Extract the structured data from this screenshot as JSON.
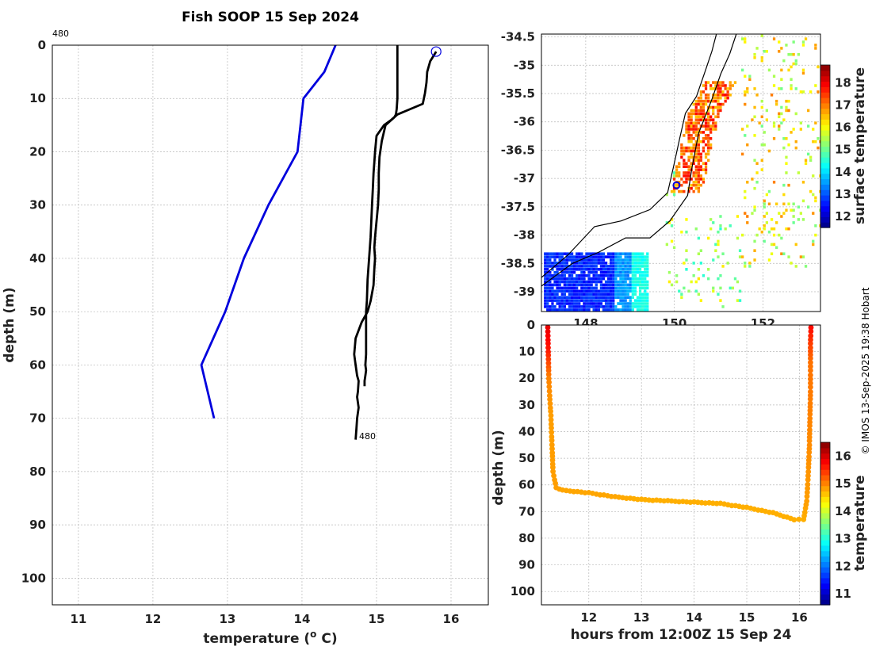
{
  "title": "Fish SOOP 15 Sep 2024",
  "credit": "© IMOS 13-Sep-2025 19:38 Hobart",
  "chart_data": [
    {
      "type": "line",
      "name": "temperature-profile",
      "xlabel": "temperature (",
      "xlabel_sup": "o",
      "xlabel_end": " C)",
      "ylabel": "depth (m)",
      "xlim": [
        10.65,
        16.5
      ],
      "ylim": [
        0,
        105
      ],
      "xticks": [
        11,
        12,
        13,
        14,
        15,
        16
      ],
      "yticks": [
        0,
        10,
        20,
        30,
        40,
        50,
        60,
        70,
        80,
        90,
        100
      ],
      "grid": true,
      "top_annotation": "480",
      "bottom_annotation": "480",
      "series": [
        {
          "name": "climatology",
          "color": "#0000dd",
          "x": [
            14.45,
            14.3,
            14.02,
            13.94,
            13.55,
            13.22,
            12.97,
            12.65,
            12.82
          ],
          "y": [
            0,
            5,
            10,
            20,
            30,
            40,
            50,
            60,
            70
          ]
        },
        {
          "name": "cast-down",
          "color": "#000000",
          "x": [
            15.28,
            15.28,
            15.28,
            15.27,
            15.26,
            15.24,
            15.2,
            15.1,
            15.0,
            14.98,
            14.97,
            14.96,
            14.95,
            14.94,
            14.93,
            14.92,
            14.9,
            14.88,
            14.87,
            14.86,
            14.86,
            14.86,
            14.86,
            14.85,
            14.86,
            14.85,
            14.84,
            14.84
          ],
          "y": [
            0,
            5,
            10,
            12,
            13,
            13.5,
            14,
            15,
            17,
            20,
            22,
            24,
            27,
            30,
            33,
            36,
            40,
            44,
            48,
            50,
            52,
            55,
            58,
            60,
            61,
            62,
            63,
            64
          ]
        },
        {
          "name": "cast-up",
          "color": "#000000",
          "x": [
            15.8,
            15.72,
            15.68,
            15.67,
            15.65,
            15.62,
            15.28,
            15.12,
            15.07,
            15.04,
            15.03,
            15.03,
            15.02,
            15.0,
            14.98,
            14.97,
            14.98,
            14.97,
            14.96,
            14.92,
            14.88,
            14.8,
            14.72,
            14.7,
            14.72,
            14.74,
            14.76,
            14.75,
            14.74,
            14.76,
            14.74,
            14.73,
            14.72
          ],
          "y": [
            1.2,
            3,
            5,
            7,
            9,
            11,
            13,
            15,
            18,
            21,
            24,
            27,
            30,
            33,
            36,
            38,
            40,
            42,
            45,
            48,
            50,
            52,
            55,
            58,
            60,
            62,
            63,
            65,
            66,
            68,
            70,
            72,
            74
          ]
        }
      ],
      "marker_circle": {
        "x": 15.8,
        "y": 1.2
      }
    },
    {
      "type": "heatmap",
      "name": "sst-map",
      "colorbar_label": "surface temperature",
      "colorbar_ticks": [
        12,
        13,
        14,
        15,
        16,
        17,
        18
      ],
      "colorbar_range": [
        11.5,
        18.8
      ],
      "xlim": [
        147.0,
        153.3
      ],
      "ylim": [
        -39.35,
        -34.45
      ],
      "xticks": [
        148,
        150,
        152
      ],
      "yticks": [
        -34.5,
        -35,
        -35.5,
        -36,
        -36.5,
        -37,
        -37.5,
        -38,
        -38.5,
        -39
      ],
      "yticklabels": [
        "-34.5",
        "-35",
        "-35.5",
        "-36",
        "-36.5",
        "-37",
        "-37.5",
        "-38",
        "-38.5",
        "-39"
      ],
      "coast": [
        [
          147.0,
          -38.75
        ],
        [
          147.6,
          -38.35
        ],
        [
          148.2,
          -37.85
        ],
        [
          148.8,
          -37.75
        ],
        [
          149.45,
          -37.55
        ],
        [
          149.85,
          -37.25
        ],
        [
          149.98,
          -36.8
        ],
        [
          150.12,
          -36.3
        ],
        [
          150.25,
          -35.85
        ],
        [
          150.5,
          -35.55
        ],
        [
          150.7,
          -35.1
        ],
        [
          150.85,
          -34.75
        ],
        [
          150.95,
          -34.45
        ]
      ],
      "boundary": [
        [
          147.0,
          -38.9
        ],
        [
          147.7,
          -38.5
        ],
        [
          148.3,
          -38.3
        ],
        [
          148.9,
          -38.05
        ],
        [
          149.45,
          -38.05
        ],
        [
          149.9,
          -37.75
        ],
        [
          150.3,
          -37.3
        ],
        [
          150.4,
          -36.8
        ],
        [
          150.55,
          -36.2
        ],
        [
          150.85,
          -35.6
        ],
        [
          151.05,
          -35.15
        ],
        [
          151.25,
          -34.8
        ],
        [
          151.4,
          -34.45
        ]
      ],
      "track_point": {
        "lon": 150.05,
        "lat": -37.12
      }
    },
    {
      "type": "scatter",
      "name": "depth-time",
      "xlabel": "hours from 12:00Z 15 Sep 24",
      "ylabel": "depth (m)",
      "colorbar_label": "temperature",
      "colorbar_ticks": [
        11,
        12,
        13,
        14,
        15,
        16
      ],
      "colorbar_range": [
        10.6,
        16.5
      ],
      "xlim": [
        11.1,
        16.4
      ],
      "ylim": [
        0,
        105
      ],
      "xticks": [
        12,
        13,
        14,
        15,
        16
      ],
      "yticks": [
        0,
        10,
        20,
        30,
        40,
        50,
        60,
        70,
        80,
        90,
        100
      ],
      "track": [
        {
          "t": 11.22,
          "d": 1,
          "temp": 15.9
        },
        {
          "t": 11.23,
          "d": 10,
          "temp": 15.6
        },
        {
          "t": 11.24,
          "d": 20,
          "temp": 15.0
        },
        {
          "t": 11.26,
          "d": 28,
          "temp": 14.9
        },
        {
          "t": 11.28,
          "d": 34,
          "temp": 14.85
        },
        {
          "t": 11.3,
          "d": 45,
          "temp": 14.85
        },
        {
          "t": 11.32,
          "d": 55,
          "temp": 14.85
        },
        {
          "t": 11.38,
          "d": 61,
          "temp": 14.85
        },
        {
          "t": 11.5,
          "d": 62,
          "temp": 14.8
        },
        {
          "t": 12.0,
          "d": 63,
          "temp": 14.8
        },
        {
          "t": 12.5,
          "d": 64.5,
          "temp": 14.8
        },
        {
          "t": 13.0,
          "d": 65.5,
          "temp": 14.75
        },
        {
          "t": 13.5,
          "d": 66,
          "temp": 14.75
        },
        {
          "t": 14.0,
          "d": 66.5,
          "temp": 14.75
        },
        {
          "t": 14.5,
          "d": 67,
          "temp": 14.75
        },
        {
          "t": 15.0,
          "d": 68.5,
          "temp": 14.75
        },
        {
          "t": 15.5,
          "d": 70.5,
          "temp": 14.75
        },
        {
          "t": 15.9,
          "d": 73,
          "temp": 14.75
        },
        {
          "t": 16.08,
          "d": 73,
          "temp": 14.75
        },
        {
          "t": 16.14,
          "d": 66,
          "temp": 14.85
        },
        {
          "t": 16.17,
          "d": 55,
          "temp": 14.9
        },
        {
          "t": 16.19,
          "d": 45,
          "temp": 14.95
        },
        {
          "t": 16.2,
          "d": 35,
          "temp": 15.0
        },
        {
          "t": 16.21,
          "d": 25,
          "temp": 15.05
        },
        {
          "t": 16.21,
          "d": 14,
          "temp": 15.1
        },
        {
          "t": 16.21,
          "d": 7,
          "temp": 15.4
        },
        {
          "t": 16.22,
          "d": 1,
          "temp": 15.7
        }
      ]
    }
  ]
}
